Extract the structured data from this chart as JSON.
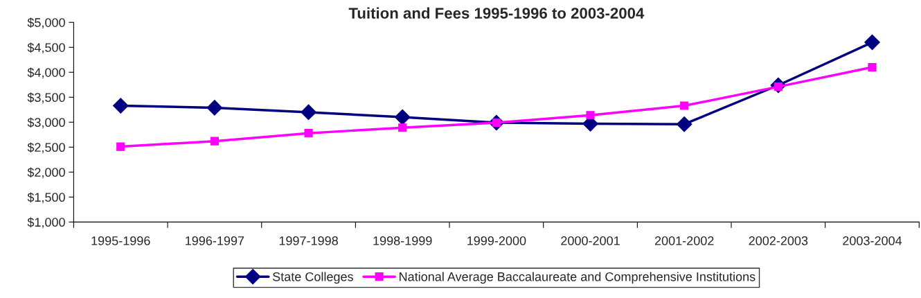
{
  "chart_data": {
    "type": "line",
    "title": "Tuition and Fees 1995-1996 to 2003-2004",
    "categories": [
      "1995-1996",
      "1996-1997",
      "1997-1998",
      "1998-1999",
      "1999-2000",
      "2000-2001",
      "2001-2002",
      "2002-2003",
      "2003-2004"
    ],
    "series": [
      {
        "name": "State Colleges",
        "color": "#000080",
        "marker": "diamond",
        "values": [
          3330,
          3290,
          3200,
          3100,
          2990,
          2970,
          2960,
          3740,
          4600
        ]
      },
      {
        "name": "National Average Baccalaureate and Comprehensive Institutions",
        "color": "#ff00ff",
        "marker": "square",
        "values": [
          2510,
          2620,
          2780,
          2890,
          2990,
          3140,
          3330,
          3710,
          4100
        ]
      }
    ],
    "ylim": [
      1000,
      5000
    ],
    "yticks": [
      {
        "value": 1000,
        "label": "$1,000"
      },
      {
        "value": 1500,
        "label": "$1,500"
      },
      {
        "value": 2000,
        "label": "$2,000"
      },
      {
        "value": 2500,
        "label": "$2,500"
      },
      {
        "value": 3000,
        "label": "$3,000"
      },
      {
        "value": 3500,
        "label": "$3,500"
      },
      {
        "value": 4000,
        "label": "$4,000"
      },
      {
        "value": 4500,
        "label": "$4,500"
      },
      {
        "value": 5000,
        "label": "$5,000"
      }
    ],
    "grid": false,
    "legend": "bottom",
    "line_style": "solid"
  }
}
